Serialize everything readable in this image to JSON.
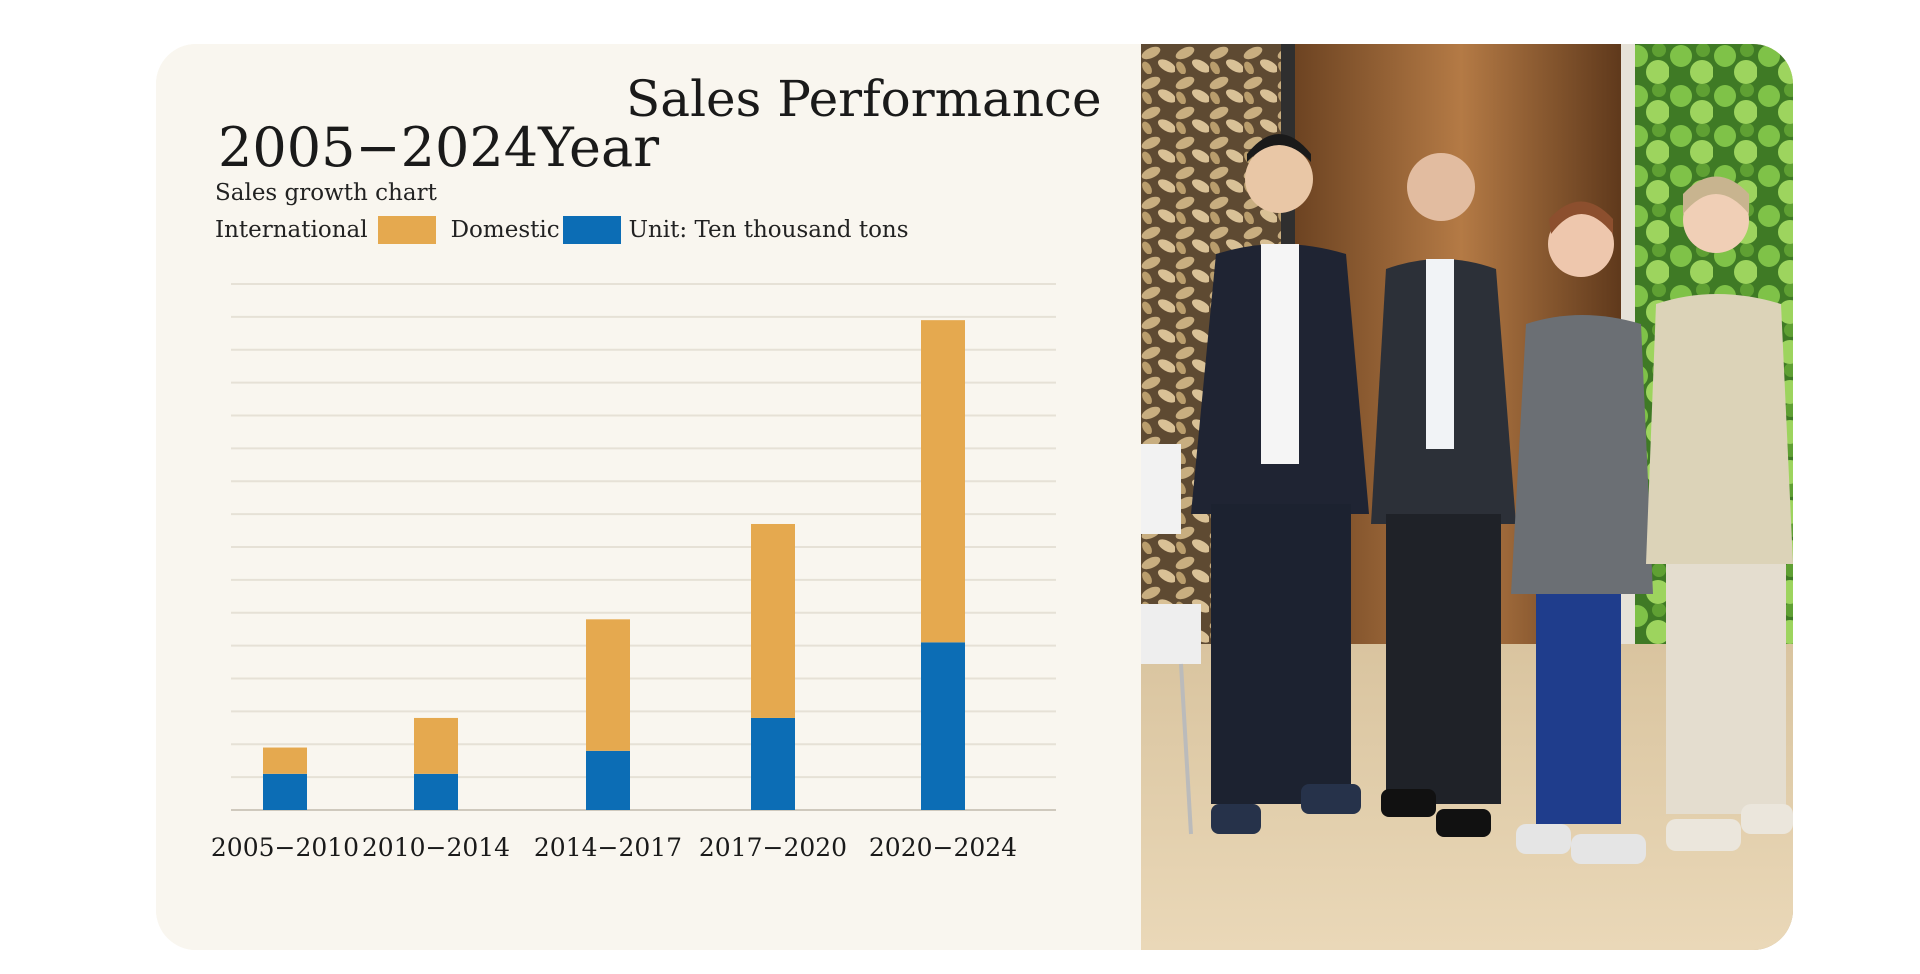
{
  "title": "Sales Performance",
  "year_range": "2005−2024Year",
  "subtitle": "Sales  growth chart",
  "legend": {
    "international": {
      "label": "International",
      "color": "#e5a94f"
    },
    "domestic": {
      "label": "Domestic",
      "color": "#0c6db5"
    },
    "unit": "Unit: Ten thousand tons"
  },
  "chart_data": {
    "type": "bar",
    "stacked": true,
    "categories": [
      "2005−2010",
      "2010−2014",
      "2014−2017",
      "2017−2020",
      "2020−2024"
    ],
    "series": [
      {
        "name": "Domestic",
        "color": "#0c6db5",
        "values": [
          1.1,
          1.1,
          1.8,
          2.8,
          5.1
        ]
      },
      {
        "name": "International",
        "color": "#e5a94f",
        "values": [
          0.8,
          1.7,
          4.0,
          5.9,
          9.8
        ]
      }
    ],
    "ylim": [
      0,
      16
    ],
    "grid": true,
    "legend_position": "top-left"
  },
  "photo": {
    "description_icon": "team-photo"
  }
}
